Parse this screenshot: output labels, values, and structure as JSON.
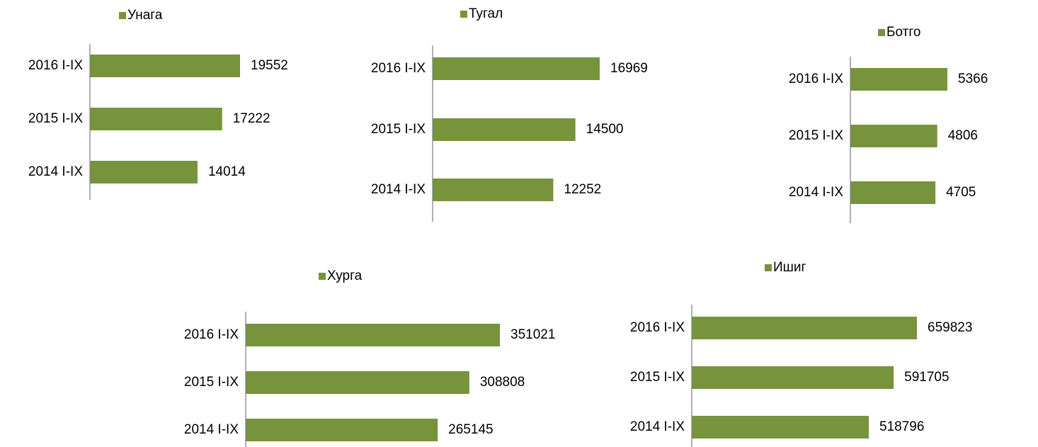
{
  "chart_data": [
    {
      "type": "bar",
      "orientation": "horizontal",
      "categories": [
        "2016 I-IX",
        "2015 I-IX",
        "2014 I-IX"
      ],
      "series": [
        {
          "name": "Унага",
          "color": "#77933c",
          "values": [
            19552,
            17222,
            14014
          ]
        }
      ]
    },
    {
      "type": "bar",
      "orientation": "horizontal",
      "categories": [
        "2016 I-IX",
        "2015 I-IX",
        "2014 I-IX"
      ],
      "series": [
        {
          "name": "Тугал",
          "color": "#77933c",
          "values": [
            16969,
            14500,
            12252
          ]
        }
      ]
    },
    {
      "type": "bar",
      "orientation": "horizontal",
      "categories": [
        "2016 I-IX",
        "2015 I-IX",
        "2014 I-IX"
      ],
      "series": [
        {
          "name": "Ботго",
          "color": "#77933c",
          "values": [
            5366,
            4806,
            4705
          ]
        }
      ]
    },
    {
      "type": "bar",
      "orientation": "horizontal",
      "categories": [
        "2016 I-IX",
        "2015 I-IX",
        "2014 I-IX"
      ],
      "series": [
        {
          "name": "Хурга",
          "color": "#77933c",
          "values": [
            351021,
            308808,
            265145
          ]
        }
      ]
    },
    {
      "type": "bar",
      "orientation": "horizontal",
      "categories": [
        "2016 I-IX",
        "2015 I-IX",
        "2014 I-IX"
      ],
      "series": [
        {
          "name": "Ишиг",
          "color": "#77933c",
          "values": [
            659823,
            591705,
            518796
          ]
        }
      ]
    }
  ]
}
